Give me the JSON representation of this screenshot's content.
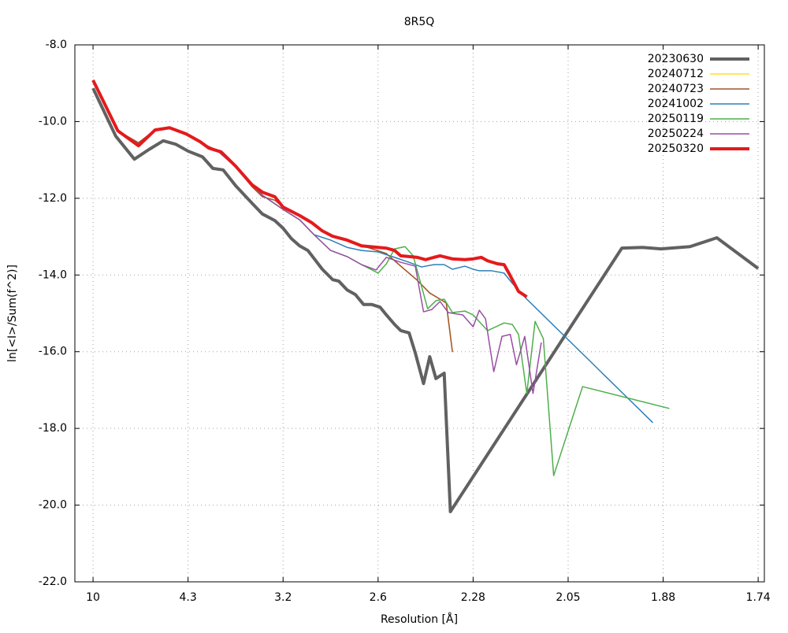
{
  "chart_data": {
    "type": "line",
    "title": "8R5Q",
    "x_label": "Resolution [Å]",
    "y_label": "ln[<I>/Sum(f^2)]",
    "xlim": [
      0.0012,
      0.335
    ],
    "ylim": [
      -22,
      -8
    ],
    "xticks": [
      {
        "value": 0.01,
        "label": "10"
      },
      {
        "value": 0.056,
        "label": "4.3"
      },
      {
        "value": 0.102,
        "label": "3.2"
      },
      {
        "value": 0.148,
        "label": "2.6"
      },
      {
        "value": 0.194,
        "label": "2.28"
      },
      {
        "value": 0.24,
        "label": "2.05"
      },
      {
        "value": 0.286,
        "label": "1.88"
      },
      {
        "value": 0.332,
        "label": "1.74"
      }
    ],
    "yticks": [
      {
        "value": -8,
        "label": "-8.0"
      },
      {
        "value": -10,
        "label": "-10.0"
      },
      {
        "value": -12,
        "label": "-12.0"
      },
      {
        "value": -14,
        "label": "-14.0"
      },
      {
        "value": -16,
        "label": "-16.0"
      },
      {
        "value": -18,
        "label": "-18.0"
      },
      {
        "value": -20,
        "label": "-20.0"
      },
      {
        "value": -22,
        "label": "-22.0"
      }
    ],
    "grid": true,
    "legend": "top-right",
    "series": [
      {
        "name": "20230630",
        "color": "#616161",
        "width": 4,
        "x": [
          0.01,
          0.021,
          0.03,
          0.037,
          0.044,
          0.05,
          0.056,
          0.063,
          0.068,
          0.073,
          0.079,
          0.087,
          0.092,
          0.098,
          0.102,
          0.106,
          0.11,
          0.114,
          0.117,
          0.121,
          0.126,
          0.129,
          0.133,
          0.137,
          0.141,
          0.145,
          0.149,
          0.152,
          0.156,
          0.159,
          0.163,
          0.166,
          0.17,
          0.173,
          0.176,
          0.18,
          0.183,
          0.266,
          0.276,
          0.285,
          0.299,
          0.312,
          0.332
        ],
        "values": [
          -9.13,
          -10.38,
          -10.98,
          -10.73,
          -10.5,
          -10.59,
          -10.77,
          -10.92,
          -11.22,
          -11.26,
          -11.67,
          -12.13,
          -12.41,
          -12.58,
          -12.78,
          -13.05,
          -13.24,
          -13.36,
          -13.57,
          -13.85,
          -14.12,
          -14.16,
          -14.39,
          -14.51,
          -14.77,
          -14.77,
          -14.84,
          -15.04,
          -15.29,
          -15.45,
          -15.51,
          -16.03,
          -16.83,
          -16.13,
          -16.7,
          -16.56,
          -20.17,
          -13.3,
          -13.28,
          -13.32,
          -13.26,
          -13.03,
          -13.83
        ]
      },
      {
        "name": "20240712",
        "color": "#ffdd33",
        "width": 1.5,
        "x": [
          0.01,
          0.022,
          0.032,
          0.04,
          0.047,
          0.055,
          0.062,
          0.066,
          0.072,
          0.079,
          0.087,
          0.092,
          0.098,
          0.102,
          0.11,
          0.116,
          0.121,
          0.126,
          0.133,
          0.14,
          0.144,
          0.152,
          0.159,
          0.167,
          0.173,
          0.178,
          0.181,
          0.184
        ],
        "values": [
          -8.92,
          -10.24,
          -10.55,
          -10.22,
          -10.18,
          -10.32,
          -10.53,
          -10.69,
          -10.79,
          -11.18,
          -11.7,
          -11.96,
          -12.05,
          -12.23,
          -12.45,
          -12.64,
          -12.85,
          -12.99,
          -13.09,
          -13.24,
          -13.3,
          -13.44,
          -13.77,
          -14.14,
          -14.47,
          -14.63,
          -14.73,
          -16.01
        ]
      },
      {
        "name": "20240723",
        "color": "#a0522d",
        "width": 1.5,
        "x": [
          0.01,
          0.022,
          0.032,
          0.04,
          0.047,
          0.055,
          0.062,
          0.066,
          0.072,
          0.079,
          0.087,
          0.092,
          0.098,
          0.102,
          0.11,
          0.116,
          0.121,
          0.126,
          0.133,
          0.14,
          0.144,
          0.152,
          0.159,
          0.167,
          0.173,
          0.178,
          0.181,
          0.184
        ],
        "values": [
          -8.92,
          -10.24,
          -10.55,
          -10.22,
          -10.18,
          -10.32,
          -10.53,
          -10.69,
          -10.79,
          -11.18,
          -11.7,
          -11.96,
          -12.05,
          -12.23,
          -12.45,
          -12.64,
          -12.85,
          -12.99,
          -13.09,
          -13.24,
          -13.3,
          -13.44,
          -13.77,
          -14.14,
          -14.47,
          -14.63,
          -14.73,
          -16.01
        ]
      },
      {
        "name": "20241002",
        "color": "#2c7fb8",
        "width": 1.5,
        "x": [
          0.01,
          0.022,
          0.032,
          0.04,
          0.047,
          0.055,
          0.062,
          0.07,
          0.079,
          0.087,
          0.092,
          0.102,
          0.11,
          0.117,
          0.125,
          0.133,
          0.14,
          0.148,
          0.156,
          0.163,
          0.169,
          0.175,
          0.18,
          0.184,
          0.19,
          0.194,
          0.197,
          0.203,
          0.209,
          0.213,
          0.22,
          0.281
        ],
        "values": [
          -8.92,
          -10.24,
          -10.59,
          -10.22,
          -10.18,
          -10.34,
          -10.55,
          -10.75,
          -11.18,
          -11.65,
          -11.92,
          -12.29,
          -12.56,
          -12.95,
          -13.09,
          -13.28,
          -13.36,
          -13.4,
          -13.54,
          -13.67,
          -13.79,
          -13.73,
          -13.73,
          -13.85,
          -13.77,
          -13.85,
          -13.89,
          -13.89,
          -13.95,
          -14.22,
          -14.63,
          -17.85
        ]
      },
      {
        "name": "20250119",
        "color": "#4daf4a",
        "width": 1.5,
        "x": [
          0.01,
          0.022,
          0.032,
          0.04,
          0.047,
          0.055,
          0.062,
          0.07,
          0.079,
          0.087,
          0.092,
          0.102,
          0.11,
          0.117,
          0.125,
          0.133,
          0.14,
          0.148,
          0.152,
          0.156,
          0.161,
          0.165,
          0.172,
          0.176,
          0.18,
          0.184,
          0.19,
          0.194,
          0.201,
          0.209,
          0.213,
          0.216,
          0.22,
          0.224,
          0.228,
          0.233,
          0.247,
          0.289
        ],
        "values": [
          -8.92,
          -10.24,
          -10.59,
          -10.22,
          -10.18,
          -10.34,
          -10.55,
          -10.75,
          -11.18,
          -11.65,
          -11.92,
          -12.29,
          -12.56,
          -12.95,
          -13.36,
          -13.52,
          -13.73,
          -13.95,
          -13.71,
          -13.32,
          -13.26,
          -13.5,
          -14.88,
          -14.67,
          -14.63,
          -14.98,
          -14.94,
          -15.04,
          -15.45,
          -15.25,
          -15.29,
          -15.55,
          -17.09,
          -15.21,
          -15.66,
          -19.23,
          -16.91,
          -17.48
        ]
      },
      {
        "name": "20250224",
        "color": "#984ea3",
        "width": 1.5,
        "x": [
          0.01,
          0.022,
          0.032,
          0.04,
          0.047,
          0.055,
          0.062,
          0.07,
          0.079,
          0.087,
          0.092,
          0.102,
          0.11,
          0.117,
          0.125,
          0.133,
          0.14,
          0.147,
          0.152,
          0.159,
          0.166,
          0.17,
          0.174,
          0.178,
          0.182,
          0.189,
          0.194,
          0.197,
          0.2,
          0.204,
          0.208,
          0.212,
          0.215,
          0.219,
          0.223,
          0.227
        ],
        "values": [
          -8.92,
          -10.24,
          -10.59,
          -10.22,
          -10.18,
          -10.34,
          -10.55,
          -10.75,
          -11.18,
          -11.65,
          -11.92,
          -12.29,
          -12.56,
          -12.95,
          -13.36,
          -13.52,
          -13.73,
          -13.87,
          -13.54,
          -13.67,
          -13.77,
          -14.96,
          -14.9,
          -14.69,
          -14.98,
          -15.04,
          -15.35,
          -14.92,
          -15.14,
          -16.52,
          -15.6,
          -15.55,
          -16.34,
          -15.6,
          -17.09,
          -15.76
        ]
      },
      {
        "name": "20250320",
        "color": "#e41a1c",
        "width": 4,
        "x": [
          0.01,
          0.022,
          0.032,
          0.04,
          0.047,
          0.055,
          0.062,
          0.066,
          0.072,
          0.079,
          0.087,
          0.092,
          0.098,
          0.102,
          0.11,
          0.116,
          0.121,
          0.126,
          0.133,
          0.14,
          0.148,
          0.152,
          0.156,
          0.159,
          0.163,
          0.167,
          0.171,
          0.175,
          0.178,
          0.184,
          0.19,
          0.194,
          0.198,
          0.201,
          0.206,
          0.209,
          0.212,
          0.216,
          0.22
        ],
        "values": [
          -8.92,
          -10.24,
          -10.63,
          -10.22,
          -10.16,
          -10.32,
          -10.53,
          -10.69,
          -10.79,
          -11.16,
          -11.65,
          -11.84,
          -11.96,
          -12.23,
          -12.45,
          -12.64,
          -12.85,
          -12.99,
          -13.09,
          -13.24,
          -13.28,
          -13.3,
          -13.36,
          -13.5,
          -13.52,
          -13.54,
          -13.6,
          -13.54,
          -13.5,
          -13.58,
          -13.6,
          -13.58,
          -13.54,
          -13.63,
          -13.71,
          -13.73,
          -14.02,
          -14.43,
          -14.57
        ]
      }
    ]
  }
}
